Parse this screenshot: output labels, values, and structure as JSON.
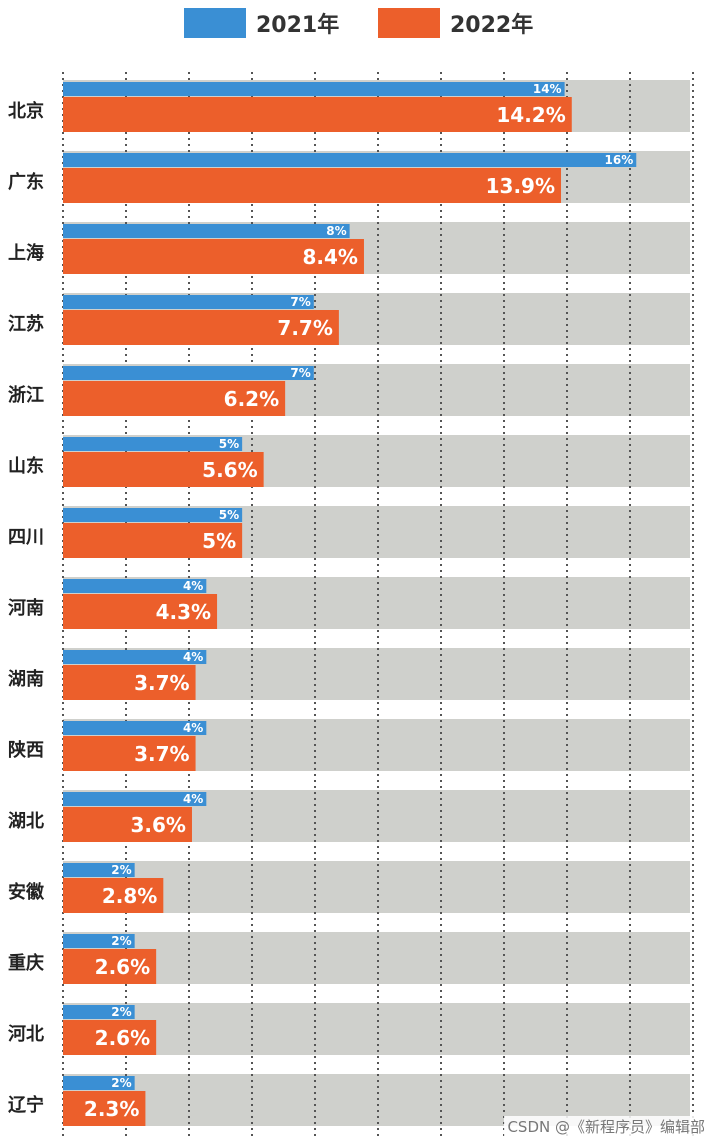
{
  "colors": {
    "series_2021": "#3a8fd4",
    "series_2022": "#ec5f2b",
    "row_background": "#cfd0cc",
    "grid": "#555555"
  },
  "chart_data": {
    "type": "bar",
    "orientation": "horizontal",
    "categories": [
      "北京",
      "广东",
      "上海",
      "江苏",
      "浙江",
      "山东",
      "四川",
      "河南",
      "湖南",
      "陕西",
      "湖北",
      "安徽",
      "重庆",
      "河北",
      "辽宁"
    ],
    "series": [
      {
        "name": "2021年",
        "values": [
          14,
          16,
          8,
          7,
          7,
          5,
          5,
          4,
          4,
          4,
          4,
          2,
          2,
          2,
          2
        ],
        "labels": [
          "14%",
          "16%",
          "8%",
          "7%",
          "7%",
          "5%",
          "5%",
          "4%",
          "4%",
          "4%",
          "4%",
          "2%",
          "2%",
          "2%",
          "2%"
        ]
      },
      {
        "name": "2022年",
        "values": [
          14.2,
          13.9,
          8.4,
          7.7,
          6.2,
          5.6,
          5,
          4.3,
          3.7,
          3.7,
          3.6,
          2.8,
          2.6,
          2.6,
          2.3
        ],
        "labels": [
          "14.2%",
          "13.9%",
          "8.4%",
          "7.7%",
          "6.2%",
          "5.6%",
          "5%",
          "4.3%",
          "3.7%",
          "3.7%",
          "3.6%",
          "2.8%",
          "2.6%",
          "2.6%",
          "2.3%"
        ]
      }
    ],
    "xlim": [
      0,
      17.5
    ],
    "grid": true,
    "legend_position": "top"
  },
  "watermark": "CSDN @《新程序员》编辑部"
}
